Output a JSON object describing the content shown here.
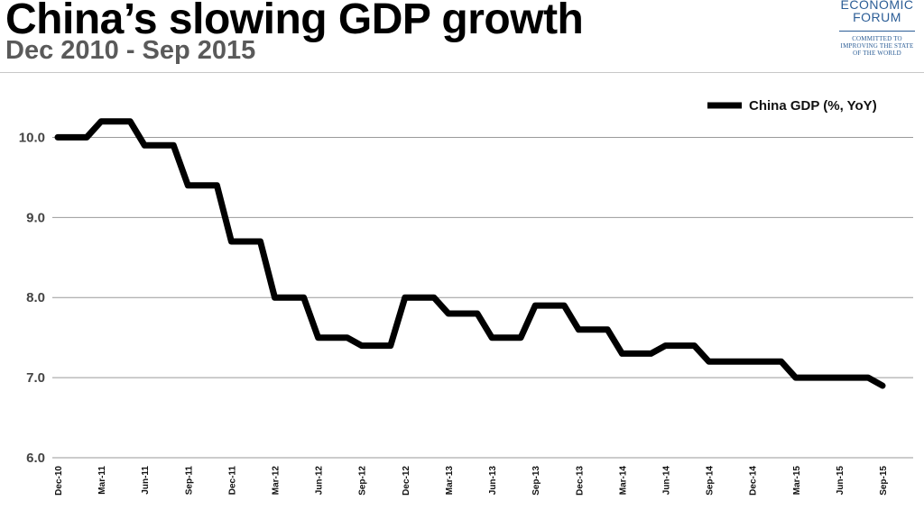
{
  "header": {
    "title": "China’s slowing GDP growth",
    "subtitle": "Dec 2010 - Sep 2015"
  },
  "logo": {
    "line1": "ECONOMIC",
    "line2": "FORUM",
    "tagline": [
      "COMMITTED TO",
      "IMPROVING THE STATE",
      "OF THE WORLD"
    ],
    "color": "#2b5d96"
  },
  "chart_data": {
    "type": "line",
    "title": "China’s slowing GDP growth",
    "subtitle": "Dec 2010 - Sep 2015",
    "xlabel": "",
    "ylabel": "",
    "ylim": [
      6.0,
      10.5
    ],
    "yticks": [
      "6.0",
      "7.0",
      "8.0",
      "9.0",
      "10.0"
    ],
    "grid": "horizontal",
    "legend_position": "top-right",
    "categories": [
      "Dec-10",
      "Jan-11",
      "Feb-11",
      "Mar-11",
      "Apr-11",
      "May-11",
      "Jun-11",
      "Jul-11",
      "Aug-11",
      "Sep-11",
      "Oct-11",
      "Nov-11",
      "Dec-11",
      "Jan-12",
      "Feb-12",
      "Mar-12",
      "Apr-12",
      "May-12",
      "Jun-12",
      "Jul-12",
      "Aug-12",
      "Sep-12",
      "Oct-12",
      "Nov-12",
      "Dec-12",
      "Jan-13",
      "Feb-13",
      "Mar-13",
      "Apr-13",
      "May-13",
      "Jun-13",
      "Jul-13",
      "Aug-13",
      "Sep-13",
      "Oct-13",
      "Nov-13",
      "Dec-13",
      "Jan-14",
      "Feb-14",
      "Mar-14",
      "Apr-14",
      "May-14",
      "Jun-14",
      "Jul-14",
      "Aug-14",
      "Sep-14",
      "Oct-14",
      "Nov-14",
      "Dec-14",
      "Jan-15",
      "Feb-15",
      "Mar-15",
      "Apr-15",
      "May-15",
      "Jun-15",
      "Jul-15",
      "Aug-15",
      "Sep-15"
    ],
    "xticks": [
      "Dec-10",
      "Mar-11",
      "Jun-11",
      "Sep-11",
      "Dec-11",
      "Mar-12",
      "Jun-12",
      "Sep-12",
      "Dec-12",
      "Mar-13",
      "Jun-13",
      "Sep-13",
      "Dec-13",
      "Mar-14",
      "Jun-14",
      "Sep-14",
      "Dec-14",
      "Mar-15",
      "Jun-15",
      "Sep-15"
    ],
    "series": [
      {
        "name": "China GDP (%, YoY)",
        "color": "#000000",
        "values": [
          10.0,
          10.0,
          10.0,
          10.2,
          10.2,
          10.2,
          9.9,
          9.9,
          9.9,
          9.4,
          9.4,
          9.4,
          8.7,
          8.7,
          8.7,
          8.0,
          8.0,
          8.0,
          7.5,
          7.5,
          7.5,
          7.4,
          7.4,
          7.4,
          8.0,
          8.0,
          8.0,
          7.8,
          7.8,
          7.8,
          7.5,
          7.5,
          7.5,
          7.9,
          7.9,
          7.9,
          7.6,
          7.6,
          7.6,
          7.3,
          7.3,
          7.3,
          7.4,
          7.4,
          7.4,
          7.2,
          7.2,
          7.2,
          7.2,
          7.2,
          7.2,
          7.0,
          7.0,
          7.0,
          7.0,
          7.0,
          7.0,
          6.9
        ]
      }
    ]
  }
}
